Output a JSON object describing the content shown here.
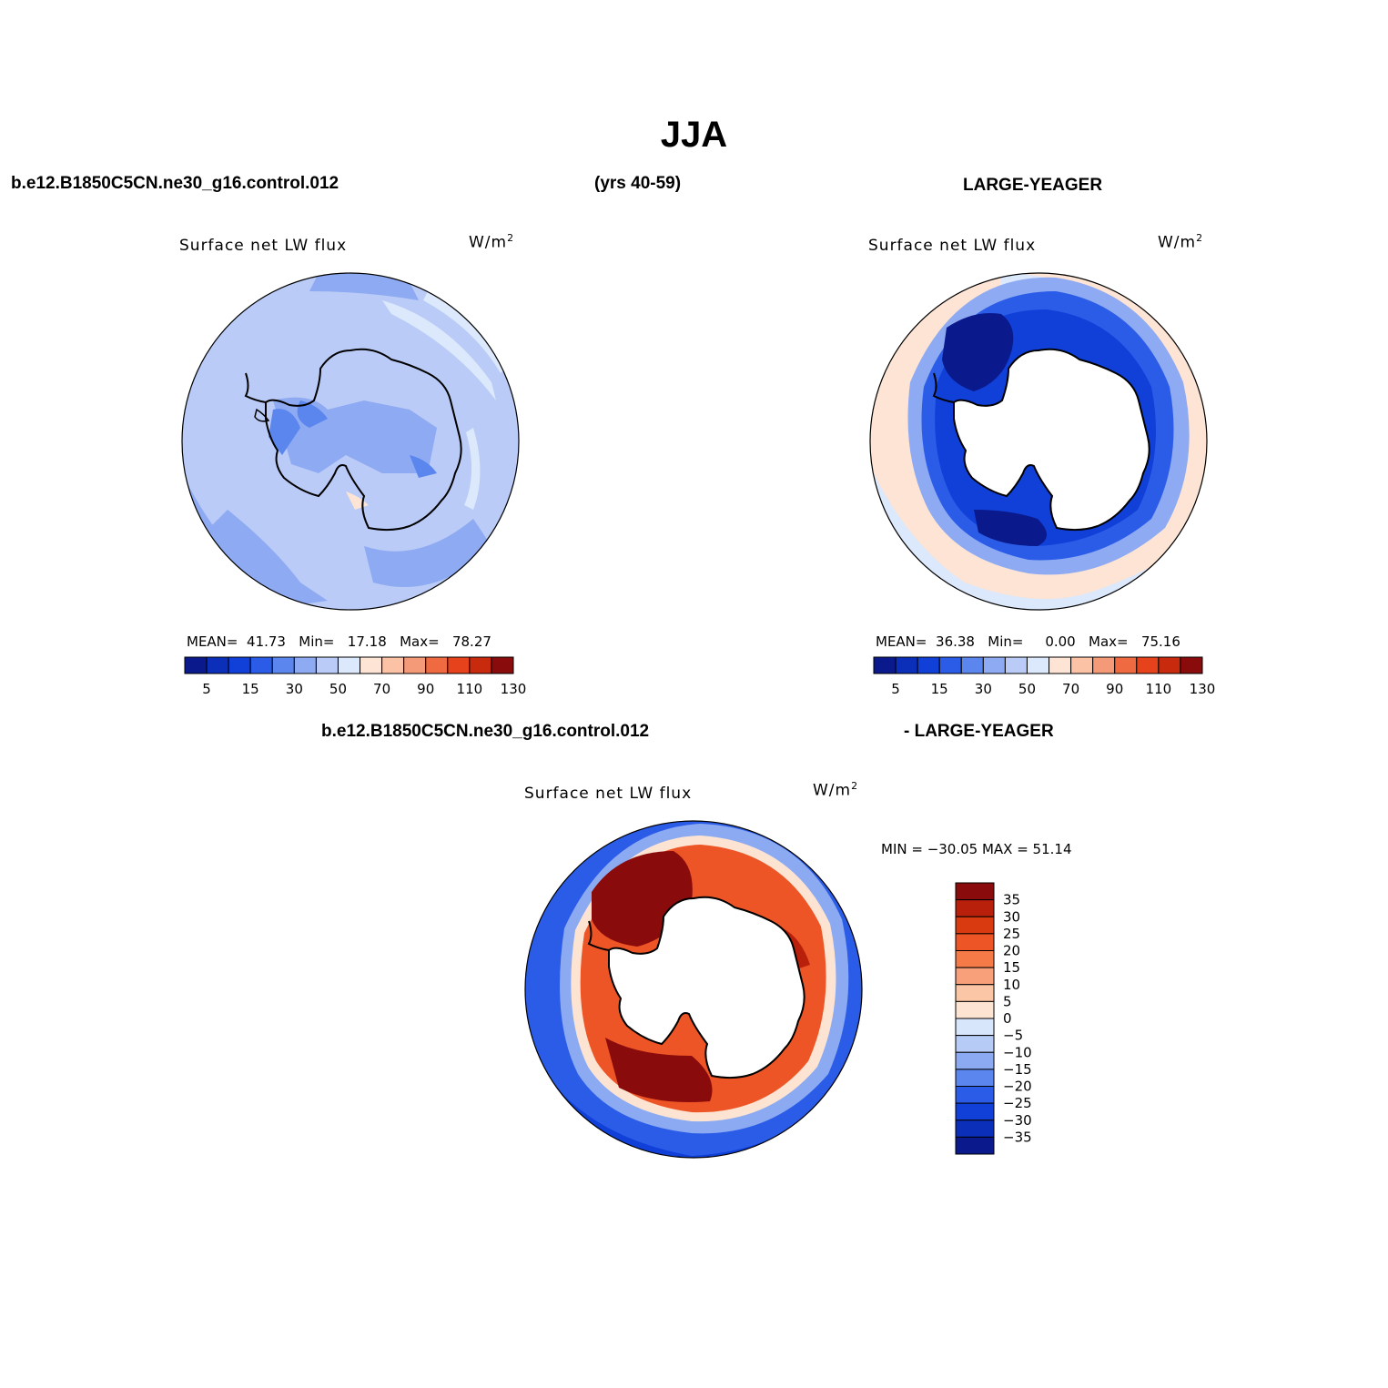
{
  "header": {
    "title": "JJA",
    "case_name": "b.e12.B1850C5CN.ne30_g16.control.012",
    "years": "(yrs 40-59)",
    "obs_name": "LARGE-YEAGER",
    "diff_case": "b.e12.B1850C5CN.ne30_g16.control.012",
    "diff_obs": "- LARGE-YEAGER"
  },
  "panels": [
    {
      "title": "Surface net LW flux",
      "units_base": "W/m",
      "units_exp": "2",
      "stats": {
        "mean_label": "MEAN=",
        "mean": "41.73",
        "min_label": "Min=",
        "min": "17.18",
        "max_label": "Max=",
        "max": "78.27"
      }
    },
    {
      "title": "Surface net LW flux",
      "units_base": "W/m",
      "units_exp": "2",
      "stats": {
        "mean_label": "MEAN=",
        "mean": "36.38",
        "min_label": "Min=",
        "min": "0.00",
        "max_label": "Max=",
        "max": "75.16"
      }
    },
    {
      "title": "Surface net LW flux",
      "units_base": "W/m",
      "units_exp": "2",
      "minmax": "MIN = −30.05 MAX =   51.14"
    }
  ],
  "colorbar_abs": {
    "colors": [
      "#0a1a8c",
      "#0b2fb8",
      "#1040d8",
      "#2a5ce8",
      "#5a86ee",
      "#8eaaf2",
      "#b9cbf6",
      "#dce8fb",
      "#fde4d4",
      "#fbc2a6",
      "#f49a78",
      "#ef6a40",
      "#e6421c",
      "#c82a0e",
      "#8a0b0b"
    ],
    "labels": [
      "5",
      "15",
      "30",
      "50",
      "70",
      "90",
      "110",
      "130"
    ]
  },
  "colorbar_diff": {
    "colors": [
      "#8a0b0b",
      "#b8200c",
      "#da3a10",
      "#ee5526",
      "#f57a48",
      "#f8a07a",
      "#fbc6a6",
      "#fde4d2",
      "#d8e6fb",
      "#b6ccf6",
      "#8caaf2",
      "#5a86ee",
      "#2a5ce8",
      "#1040d8",
      "#0b2fb8",
      "#0a1a8c"
    ],
    "labels": [
      "35",
      "30",
      "25",
      "20",
      "15",
      "10",
      "5",
      "0",
      "−5",
      "−10",
      "−15",
      "−20",
      "−25",
      "−30",
      "−35"
    ]
  }
}
